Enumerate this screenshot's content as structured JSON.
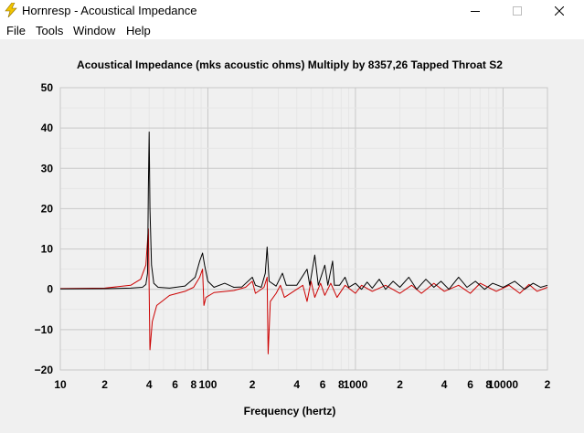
{
  "window": {
    "title": "Hornresp - Acoustical Impedance",
    "icon": "lightning-bolt-icon"
  },
  "menu": {
    "items": [
      {
        "label": "File"
      },
      {
        "label": "Tools"
      },
      {
        "label": "Window"
      },
      {
        "label": "Help"
      }
    ]
  },
  "chart_data": {
    "type": "line",
    "title": "Acoustical Impedance (mks acoustic ohms)   Multiply by 8357,26   Tapped Throat S2",
    "xlabel": "Frequency (hertz)",
    "ylabel": "",
    "xscale": "log",
    "xlim": [
      10,
      20000
    ],
    "ylim": [
      -20,
      50
    ],
    "grid": true,
    "legend": "none",
    "y_ticks": [
      "50",
      "40",
      "30",
      "20",
      "10",
      "0",
      "−10",
      "−20"
    ],
    "x_tick_labels": [
      {
        "x": 10,
        "label": "10"
      },
      {
        "x": 20,
        "label": "2"
      },
      {
        "x": 40,
        "label": "4"
      },
      {
        "x": 60,
        "label": "6"
      },
      {
        "x": 80,
        "label": "8"
      },
      {
        "x": 100,
        "label": "100"
      },
      {
        "x": 200,
        "label": "2"
      },
      {
        "x": 400,
        "label": "4"
      },
      {
        "x": 600,
        "label": "6"
      },
      {
        "x": 800,
        "label": "8"
      },
      {
        "x": 1000,
        "label": "1000"
      },
      {
        "x": 2000,
        "label": "2"
      },
      {
        "x": 4000,
        "label": "4"
      },
      {
        "x": 6000,
        "label": "6"
      },
      {
        "x": 8000,
        "label": "8"
      },
      {
        "x": 10000,
        "label": "10000"
      },
      {
        "x": 20000,
        "label": "2"
      }
    ],
    "series": [
      {
        "color": "#000000",
        "points": [
          [
            10,
            0.1
          ],
          [
            20,
            0.15
          ],
          [
            30,
            0.3
          ],
          [
            36,
            0.5
          ],
          [
            38,
            1.2
          ],
          [
            39,
            4
          ],
          [
            39.5,
            25
          ],
          [
            40,
            39
          ],
          [
            40.5,
            20
          ],
          [
            41.5,
            6
          ],
          [
            43,
            1.5
          ],
          [
            46,
            0.5
          ],
          [
            55,
            0.3
          ],
          [
            70,
            0.8
          ],
          [
            82,
            3
          ],
          [
            88,
            7
          ],
          [
            92,
            9
          ],
          [
            95,
            6
          ],
          [
            100,
            2
          ],
          [
            110,
            0.5
          ],
          [
            130,
            1.5
          ],
          [
            150,
            0.5
          ],
          [
            170,
            0.6
          ],
          [
            200,
            3
          ],
          [
            210,
            1
          ],
          [
            230,
            0.5
          ],
          [
            245,
            4
          ],
          [
            252,
            10.5
          ],
          [
            260,
            2
          ],
          [
            290,
            0.8
          ],
          [
            320,
            4
          ],
          [
            340,
            1
          ],
          [
            400,
            1
          ],
          [
            470,
            5
          ],
          [
            490,
            1
          ],
          [
            530,
            8.5
          ],
          [
            560,
            1
          ],
          [
            620,
            6
          ],
          [
            650,
            1
          ],
          [
            700,
            7
          ],
          [
            720,
            1
          ],
          [
            780,
            1
          ],
          [
            850,
            3
          ],
          [
            900,
            0.5
          ],
          [
            1000,
            1.5
          ],
          [
            1100,
            0
          ],
          [
            1200,
            1.8
          ],
          [
            1300,
            0.3
          ],
          [
            1450,
            2.5
          ],
          [
            1600,
            0
          ],
          [
            1800,
            2
          ],
          [
            2000,
            0.5
          ],
          [
            2300,
            3
          ],
          [
            2600,
            0
          ],
          [
            3000,
            2.5
          ],
          [
            3400,
            0.5
          ],
          [
            3800,
            2
          ],
          [
            4300,
            0
          ],
          [
            5000,
            3
          ],
          [
            5700,
            0.5
          ],
          [
            6500,
            2
          ],
          [
            7500,
            0
          ],
          [
            8500,
            1.5
          ],
          [
            10000,
            0.5
          ],
          [
            12000,
            2
          ],
          [
            14000,
            0
          ],
          [
            16000,
            1.5
          ],
          [
            18000,
            0.5
          ],
          [
            20000,
            1
          ]
        ]
      },
      {
        "color": "#cc0000",
        "points": [
          [
            10,
            0.2
          ],
          [
            20,
            0.3
          ],
          [
            30,
            1
          ],
          [
            35,
            2.5
          ],
          [
            38,
            6
          ],
          [
            39.5,
            15
          ],
          [
            40,
            0
          ],
          [
            40.5,
            -15
          ],
          [
            42,
            -8
          ],
          [
            45,
            -4
          ],
          [
            55,
            -1.5
          ],
          [
            70,
            -0.5
          ],
          [
            80,
            0.5
          ],
          [
            88,
            3
          ],
          [
            92,
            5
          ],
          [
            94,
            -4
          ],
          [
            97,
            -2
          ],
          [
            110,
            -0.8
          ],
          [
            150,
            -0.3
          ],
          [
            180,
            0.5
          ],
          [
            200,
            2
          ],
          [
            210,
            -1
          ],
          [
            240,
            0.5
          ],
          [
            252,
            3
          ],
          [
            256,
            -16
          ],
          [
            265,
            -3
          ],
          [
            290,
            -1
          ],
          [
            310,
            1
          ],
          [
            330,
            -2
          ],
          [
            400,
            0
          ],
          [
            440,
            1
          ],
          [
            470,
            -3
          ],
          [
            500,
            2
          ],
          [
            530,
            -2
          ],
          [
            580,
            1.5
          ],
          [
            620,
            -1.5
          ],
          [
            680,
            1.5
          ],
          [
            750,
            -2
          ],
          [
            850,
            1
          ],
          [
            1000,
            -1
          ],
          [
            1100,
            1
          ],
          [
            1300,
            -0.5
          ],
          [
            1600,
            1
          ],
          [
            2000,
            -1
          ],
          [
            2400,
            1
          ],
          [
            2800,
            -1
          ],
          [
            3400,
            1.5
          ],
          [
            4000,
            -0.5
          ],
          [
            5000,
            1
          ],
          [
            6000,
            -1
          ],
          [
            7000,
            1.5
          ],
          [
            9000,
            -0.5
          ],
          [
            11000,
            1
          ],
          [
            13000,
            -1
          ],
          [
            15000,
            1.2
          ],
          [
            17000,
            -0.5
          ],
          [
            20000,
            0.5
          ]
        ]
      }
    ]
  }
}
